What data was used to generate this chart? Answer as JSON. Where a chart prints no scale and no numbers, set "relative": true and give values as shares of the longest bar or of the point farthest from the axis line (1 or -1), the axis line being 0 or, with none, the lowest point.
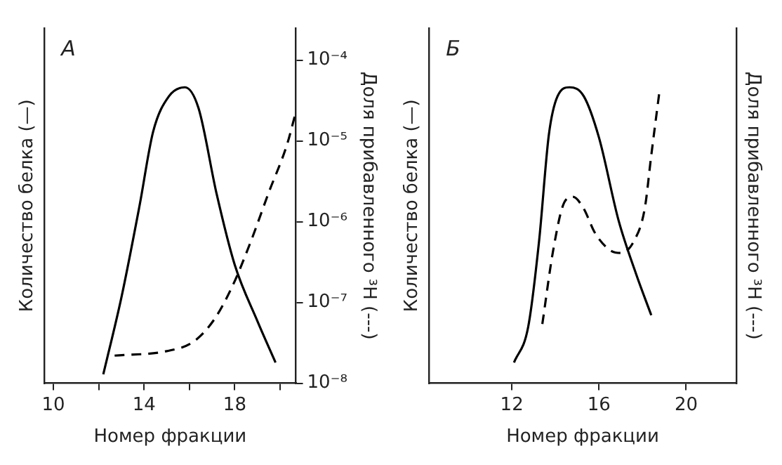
{
  "chart_data": [
    {
      "type": "line",
      "title": "A",
      "xlabel": "Номер фракции",
      "ylabel": "Количество белка (—)",
      "y2label": "Доля прибавленного ³H (---)",
      "relative": true,
      "log": "y2",
      "grid": false,
      "marker": "none",
      "xlim": [
        9.6,
        20.7
      ],
      "xticks": [
        10,
        {
          "value": 12,
          "label": null
        },
        14,
        {
          "value": 16,
          "label": null
        },
        18,
        {
          "value": 20,
          "label": null
        }
      ],
      "y2lim": [
        1e-08,
        0.00025
      ],
      "y2ticks": [
        {
          "value": 1e-08,
          "label": "10⁻⁸"
        },
        {
          "value": 1e-07,
          "label": "10⁻⁷"
        },
        {
          "value": 1e-06,
          "label": "10⁻⁶"
        },
        {
          "value": 1e-05,
          "label": "10⁻⁵"
        },
        {
          "value": 0.0001,
          "label": "10⁻⁴"
        }
      ],
      "series": [
        {
          "color": "#000000",
          "line_style": "solid",
          "x": [
            12.2,
            13.0,
            13.8,
            14.4,
            15.1,
            15.8,
            16.4,
            17.2,
            18.0,
            19.0,
            19.8
          ],
          "values": [
            0.03,
            0.29,
            0.6,
            0.85,
            0.97,
            1,
            0.93,
            0.64,
            0.4,
            0.21,
            0.07
          ]
        },
        {
          "color": "#000000",
          "line_style": "dashed",
          "axis": "y2",
          "x": [
            12.7,
            15.0,
            16.2,
            17.1,
            17.9,
            18.7,
            19.5,
            20.3,
            20.7
          ],
          "values": [
            2.2e-08,
            2.5e-08,
            3.3e-08,
            6.2e-08,
            1.6e-07,
            5.6e-07,
            2.3e-06,
            8.9e-06,
            2.3e-05
          ]
        }
      ]
    },
    {
      "type": "line",
      "title": "Б",
      "xlabel": "Номер фракции",
      "ylabel": "Количество белка (—)",
      "y2label": "Доля прибавленного ³H (---)",
      "relative": true,
      "grid": false,
      "marker": "none",
      "xlim": [
        8.2,
        22.3
      ],
      "xticks": [
        12,
        16,
        20
      ],
      "series": [
        {
          "color": "#000000",
          "line_style": "solid",
          "x": [
            12.1,
            12.75,
            13.25,
            13.7,
            14.1,
            14.65,
            15.3,
            16.0,
            16.9,
            17.7,
            18.4
          ],
          "values": [
            0.07,
            0.19,
            0.48,
            0.84,
            0.97,
            1,
            0.97,
            0.83,
            0.55,
            0.37,
            0.23
          ]
        },
        {
          "color": "#000000",
          "line_style": "dashed",
          "axis": "y2",
          "x": [
            13.4,
            13.9,
            14.4,
            14.8,
            15.3,
            15.8,
            16.5,
            17.0,
            17.6,
            18.1,
            18.4,
            18.8
          ],
          "values": [
            0.2,
            0.45,
            0.61,
            0.63,
            0.59,
            0.51,
            0.45,
            0.44,
            0.48,
            0.59,
            0.77,
            1
          ]
        }
      ]
    }
  ]
}
